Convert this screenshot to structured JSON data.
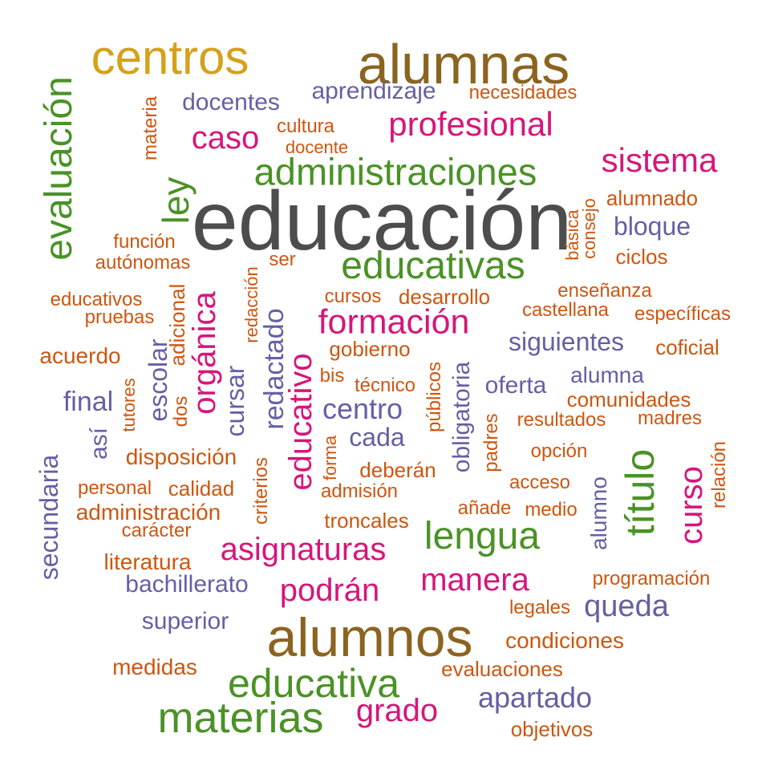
{
  "palette": {
    "gray": "#4d4d4d",
    "brown": "#8b6420",
    "gold": "#d6a11a",
    "green": "#4a9226",
    "pink": "#d6167a",
    "purple": "#6460a4",
    "orange": "#ce560f"
  },
  "words": [
    {
      "text": "educación",
      "color": "gray"
    },
    {
      "text": "alumnas",
      "color": "brown"
    },
    {
      "text": "alumnos",
      "color": "brown"
    },
    {
      "text": "centros",
      "color": "gold"
    },
    {
      "text": "evaluación",
      "color": "green"
    },
    {
      "text": "administraciones",
      "color": "green"
    },
    {
      "text": "educativas",
      "color": "green"
    },
    {
      "text": "lengua",
      "color": "green"
    },
    {
      "text": "educativa",
      "color": "green"
    },
    {
      "text": "materias",
      "color": "green"
    },
    {
      "text": "título",
      "color": "green"
    },
    {
      "text": "ley",
      "color": "green"
    },
    {
      "text": "profesional",
      "color": "pink"
    },
    {
      "text": "sistema",
      "color": "pink"
    },
    {
      "text": "formación",
      "color": "pink"
    },
    {
      "text": "caso",
      "color": "pink"
    },
    {
      "text": "asignaturas",
      "color": "pink"
    },
    {
      "text": "manera",
      "color": "pink"
    },
    {
      "text": "podrán",
      "color": "pink"
    },
    {
      "text": "grado",
      "color": "pink"
    },
    {
      "text": "orgánica",
      "color": "pink"
    },
    {
      "text": "educativo",
      "color": "pink"
    },
    {
      "text": "curso",
      "color": "pink"
    },
    {
      "text": "aprendizaje",
      "color": "purple"
    },
    {
      "text": "docentes",
      "color": "purple"
    },
    {
      "text": "bloque",
      "color": "purple"
    },
    {
      "text": "siguientes",
      "color": "purple"
    },
    {
      "text": "centro",
      "color": "purple"
    },
    {
      "text": "cada",
      "color": "purple"
    },
    {
      "text": "oferta",
      "color": "purple"
    },
    {
      "text": "alumna",
      "color": "purple"
    },
    {
      "text": "final",
      "color": "purple"
    },
    {
      "text": "queda",
      "color": "purple"
    },
    {
      "text": "apartado",
      "color": "purple"
    },
    {
      "text": "superior",
      "color": "purple"
    },
    {
      "text": "bachillerato",
      "color": "purple"
    },
    {
      "text": "redactado",
      "color": "purple"
    },
    {
      "text": "obligatoria",
      "color": "purple"
    },
    {
      "text": "escolar",
      "color": "purple"
    },
    {
      "text": "cursar",
      "color": "purple"
    },
    {
      "text": "secundaria",
      "color": "purple"
    },
    {
      "text": "así",
      "color": "purple"
    },
    {
      "text": "alumno",
      "color": "purple"
    },
    {
      "text": "necesidades",
      "color": "orange"
    },
    {
      "text": "cultura",
      "color": "orange"
    },
    {
      "text": "docente",
      "color": "orange"
    },
    {
      "text": "alumnado",
      "color": "orange"
    },
    {
      "text": "ciclos",
      "color": "orange"
    },
    {
      "text": "función",
      "color": "orange"
    },
    {
      "text": "autónomas",
      "color": "orange"
    },
    {
      "text": "ser",
      "color": "orange"
    },
    {
      "text": "enseñanza",
      "color": "orange"
    },
    {
      "text": "castellana",
      "color": "orange"
    },
    {
      "text": "específicas",
      "color": "orange"
    },
    {
      "text": "educativos",
      "color": "orange"
    },
    {
      "text": "pruebas",
      "color": "orange"
    },
    {
      "text": "cursos",
      "color": "orange"
    },
    {
      "text": "desarrollo",
      "color": "orange"
    },
    {
      "text": "acuerdo",
      "color": "orange"
    },
    {
      "text": "gobierno",
      "color": "orange"
    },
    {
      "text": "coficial",
      "color": "orange"
    },
    {
      "text": "bis",
      "color": "orange"
    },
    {
      "text": "técnico",
      "color": "orange"
    },
    {
      "text": "comunidades",
      "color": "orange"
    },
    {
      "text": "resultados",
      "color": "orange"
    },
    {
      "text": "madres",
      "color": "orange"
    },
    {
      "text": "disposición",
      "color": "orange"
    },
    {
      "text": "deberán",
      "color": "orange"
    },
    {
      "text": "opción",
      "color": "orange"
    },
    {
      "text": "personal",
      "color": "orange"
    },
    {
      "text": "calidad",
      "color": "orange"
    },
    {
      "text": "admisión",
      "color": "orange"
    },
    {
      "text": "acceso",
      "color": "orange"
    },
    {
      "text": "administración",
      "color": "orange"
    },
    {
      "text": "añade",
      "color": "orange"
    },
    {
      "text": "medio",
      "color": "orange"
    },
    {
      "text": "carácter",
      "color": "orange"
    },
    {
      "text": "troncales",
      "color": "orange"
    },
    {
      "text": "literatura",
      "color": "orange"
    },
    {
      "text": "programación",
      "color": "orange"
    },
    {
      "text": "legales",
      "color": "orange"
    },
    {
      "text": "condiciones",
      "color": "orange"
    },
    {
      "text": "medidas",
      "color": "orange"
    },
    {
      "text": "evaluaciones",
      "color": "orange"
    },
    {
      "text": "objetivos",
      "color": "orange"
    },
    {
      "text": "materia",
      "color": "orange"
    },
    {
      "text": "básica",
      "color": "orange"
    },
    {
      "text": "consejo",
      "color": "orange"
    },
    {
      "text": "redacción",
      "color": "orange"
    },
    {
      "text": "adicional",
      "color": "orange"
    },
    {
      "text": "dos",
      "color": "orange"
    },
    {
      "text": "tutores",
      "color": "orange"
    },
    {
      "text": "públicos",
      "color": "orange"
    },
    {
      "text": "padres",
      "color": "orange"
    },
    {
      "text": "forma",
      "color": "orange"
    },
    {
      "text": "criterios",
      "color": "orange"
    },
    {
      "text": "relación",
      "color": "orange"
    }
  ]
}
